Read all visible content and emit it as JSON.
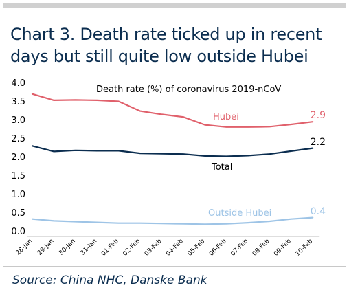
{
  "header": {
    "title_line1": "Chart 3. Death rate ticked up in recent",
    "title_line2": "days but still quite low outside Hubei"
  },
  "footer": {
    "source": "Source:  China NHC, Danske Bank"
  },
  "chart_data": {
    "type": "line",
    "title": "Death rate (%) of coronavirus 2019-nCoV",
    "categories": [
      "28-Jan",
      "29-Jan",
      "30-Jan",
      "31-Jan",
      "01-Feb",
      "02-Feb",
      "03-Feb",
      "04-Feb",
      "05-Feb",
      "06-Feb",
      "07-Feb",
      "08-Feb",
      "09-Feb",
      "10-Feb"
    ],
    "ylim": [
      0,
      4.0
    ],
    "yticks": [
      "0.0",
      "0.5",
      "1.0",
      "1.5",
      "2.0",
      "2.5",
      "3.0",
      "3.5",
      "4.0"
    ],
    "grid": false,
    "series": [
      {
        "name": "Hubei",
        "color": "#e0606b",
        "end_label": "2.9",
        "values": [
          3.69,
          3.52,
          3.53,
          3.52,
          3.49,
          3.23,
          3.14,
          3.07,
          2.86,
          2.8,
          2.8,
          2.81,
          2.87,
          2.94
        ]
      },
      {
        "name": "Total",
        "color": "#0b2d4f",
        "end_label": "2.2",
        "values": [
          2.29,
          2.14,
          2.17,
          2.16,
          2.16,
          2.09,
          2.08,
          2.07,
          2.02,
          2.01,
          2.03,
          2.07,
          2.15,
          2.23
        ]
      },
      {
        "name": "Outside Hubei",
        "color": "#9ec4e6",
        "end_label": "0.4",
        "values": [
          0.32,
          0.27,
          0.25,
          0.23,
          0.21,
          0.21,
          0.2,
          0.19,
          0.18,
          0.19,
          0.22,
          0.26,
          0.32,
          0.36
        ]
      }
    ]
  }
}
